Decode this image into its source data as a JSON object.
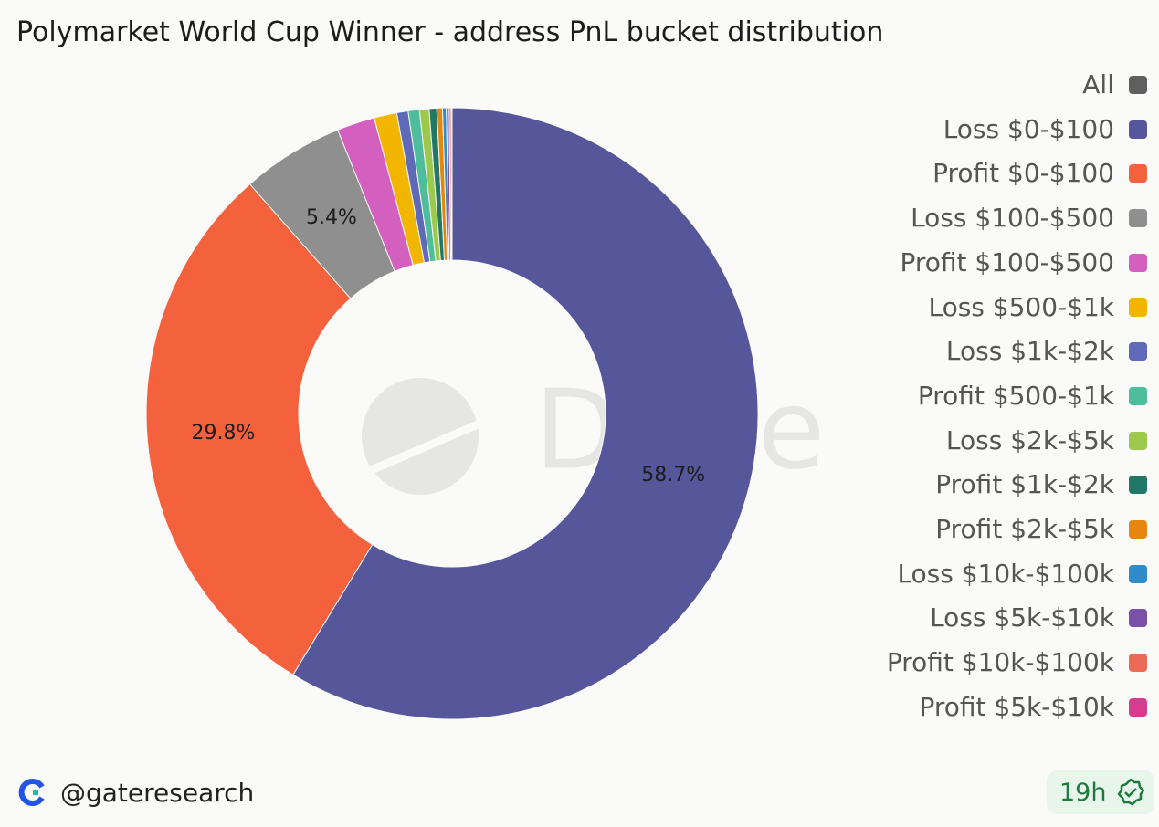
{
  "chart_data": {
    "type": "pie",
    "title": "Polymarket World Cup Winner - address PnL bucket distribution",
    "watermark": "Dune",
    "categories": [
      "All",
      "Loss $0-$100",
      "Profit $0-$100",
      "Loss $100-$500",
      "Profit $100-$500",
      "Loss $500-$1k",
      "Loss $1k-$2k",
      "Profit $500-$1k",
      "Loss $2k-$5k",
      "Profit $1k-$2k",
      "Profit $2k-$5k",
      "Loss $10k-$100k",
      "Loss $5k-$10k",
      "Profit $10k-$100k",
      "Profit $5k-$10k"
    ],
    "values": [
      0,
      58.7,
      29.8,
      5.4,
      2.0,
      1.2,
      0.6,
      0.6,
      0.5,
      0.4,
      0.3,
      0.2,
      0.15,
      0.1,
      0.05
    ],
    "value_labels": [
      null,
      "58.7%",
      "29.8%",
      "5.4%",
      null,
      null,
      null,
      null,
      null,
      null,
      null,
      null,
      null,
      null,
      null
    ],
    "colors": [
      "#5f5f5f",
      "#55579a",
      "#f4623d",
      "#8f8f8f",
      "#d35fbf",
      "#f2b600",
      "#5e6ab8",
      "#4dbd9b",
      "#9cc84b",
      "#227866",
      "#e6860f",
      "#2f8bc9",
      "#7952a8",
      "#ec6a55",
      "#d63d8e"
    ],
    "legend": "right"
  },
  "footer": {
    "handle": "@gateresearch",
    "age": "19h"
  }
}
